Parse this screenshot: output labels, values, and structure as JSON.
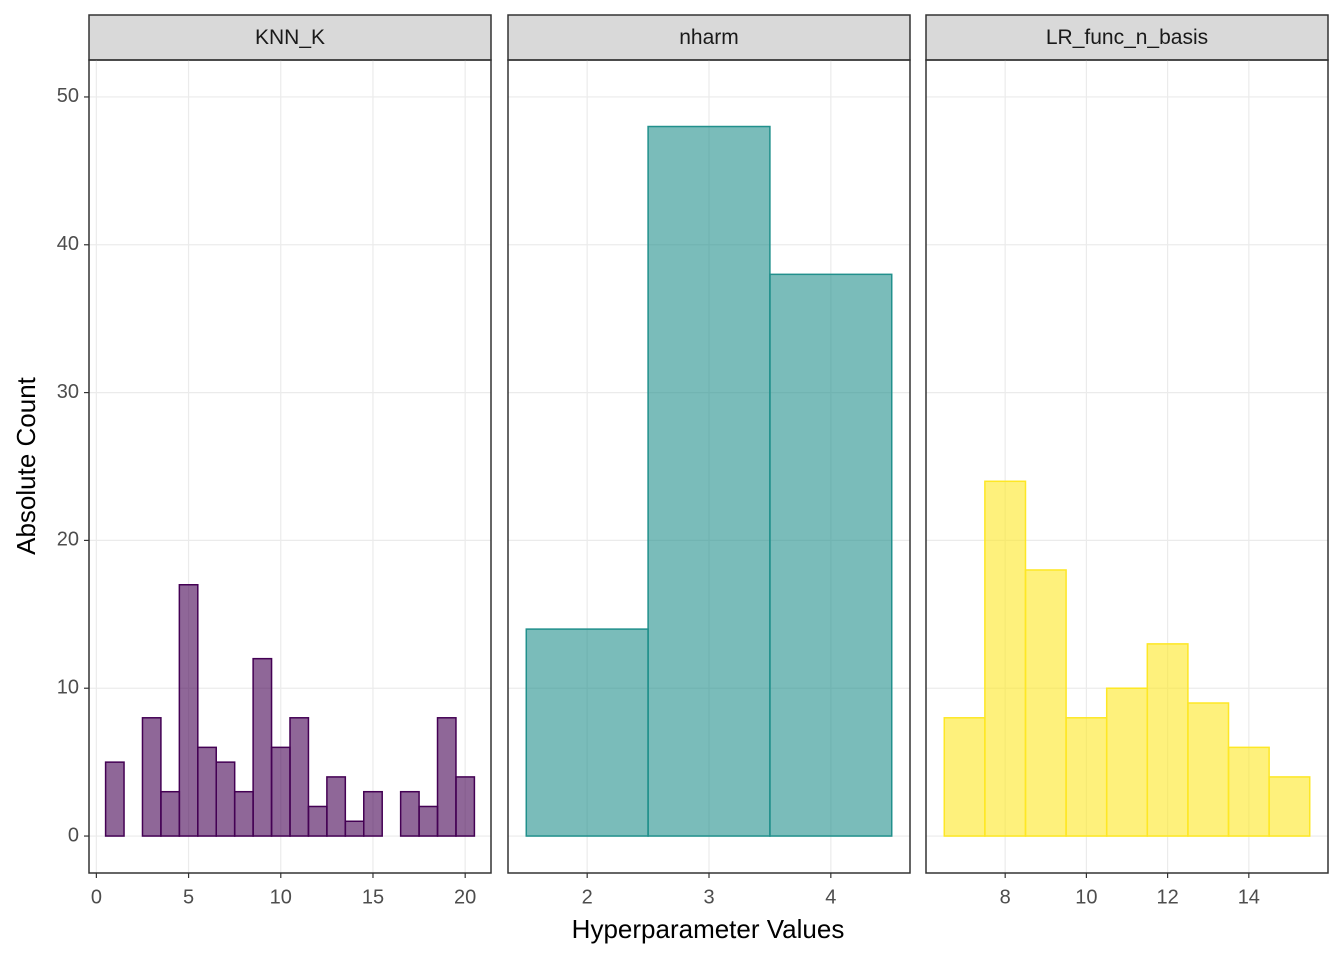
{
  "chart_data": [
    {
      "type": "histogram",
      "title": "KNN_K",
      "ylabel": "Absolute Count",
      "bins": [
        0.5,
        1.5,
        2.5,
        3.5,
        4.5,
        5.5,
        6.5,
        7.5,
        8.5,
        9.5,
        10.5,
        11.5,
        12.5,
        13.5,
        14.5,
        15.5,
        16.5,
        17.5,
        18.5,
        19.5,
        20.5
      ],
      "values": [
        5,
        0,
        8,
        3,
        17,
        6,
        5,
        3,
        12,
        6,
        8,
        2,
        4,
        1,
        3,
        0,
        3,
        2,
        8,
        4
      ],
      "color": "#440154",
      "xlim": [
        -0.4,
        21.4
      ],
      "xticks": [
        0,
        5,
        10,
        15,
        20
      ],
      "ylim": [
        -2.5,
        52.5
      ],
      "yticks": [
        0,
        10,
        20,
        30,
        40,
        50
      ],
      "grid": true
    },
    {
      "type": "histogram",
      "title": "nharm",
      "xlabel": "Hyperparameter Values",
      "bins": [
        1.5,
        2.5,
        3.5,
        4.5
      ],
      "values": [
        14,
        48,
        38
      ],
      "color": "#21908C",
      "xlim": [
        1.35,
        4.65
      ],
      "xticks": [
        2,
        3,
        4
      ],
      "ylim": [
        -2.5,
        52.5
      ],
      "yticks": [
        0,
        10,
        20,
        30,
        40,
        50
      ],
      "grid": true
    },
    {
      "type": "histogram",
      "title": "LR_func_n_basis",
      "bins": [
        6.5,
        7.5,
        8.5,
        9.5,
        10.5,
        11.5,
        12.5,
        13.5,
        14.5,
        15.5
      ],
      "values": [
        8,
        24,
        18,
        8,
        10,
        13,
        9,
        6,
        4
      ],
      "color": "#FDE725",
      "xlim": [
        6.05,
        15.95
      ],
      "xticks": [
        8,
        10,
        12,
        14
      ],
      "ylim": [
        -2.5,
        52.5
      ],
      "yticks": [
        0,
        10,
        20,
        30,
        40,
        50
      ],
      "grid": true
    }
  ]
}
